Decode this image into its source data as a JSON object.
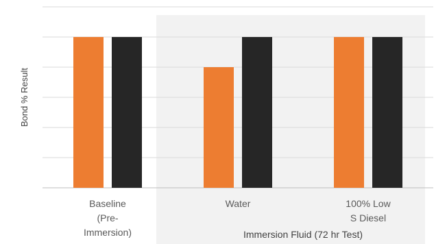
{
  "chart_data": {
    "type": "bar",
    "title": "",
    "xlabel": "",
    "ylabel": "Bond % Result",
    "ylim": [
      0,
      6
    ],
    "grid": true,
    "legend": "none",
    "categories": [
      [
        "Baseline",
        "(Pre-",
        "Immersion)"
      ],
      [
        "Water"
      ],
      [
        "100% Low",
        "S Diesel"
      ]
    ],
    "series": [
      {
        "color": "#ED7D31",
        "values": [
          5,
          4,
          5
        ]
      },
      {
        "color": "#262626",
        "values": [
          5,
          5,
          5
        ]
      }
    ],
    "group_bracket": {
      "label": "Immersion Fluid (72 hr Test)",
      "categories": [
        1,
        2
      ],
      "fill": "#F2F2F2"
    }
  }
}
